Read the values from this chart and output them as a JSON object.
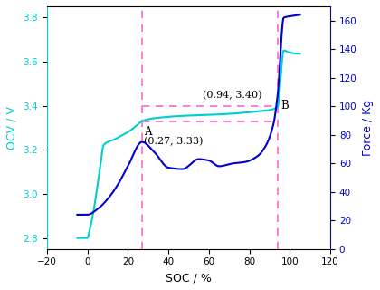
{
  "xlabel": "SOC / %",
  "ylabel_left": "OCV / V",
  "ylabel_right": "Force / Kg",
  "xlim": [
    -20,
    120
  ],
  "ylim_left": [
    2.75,
    3.85
  ],
  "ylim_right": [
    0,
    170
  ],
  "xticks": [
    -20,
    0,
    20,
    40,
    60,
    80,
    100,
    120
  ],
  "yticks_left": [
    2.8,
    3.0,
    3.2,
    3.4,
    3.6,
    3.8
  ],
  "yticks_right": [
    0,
    20,
    40,
    60,
    80,
    100,
    120,
    140,
    160
  ],
  "ocv_color": "#00CDCD",
  "force_color": "#0000CC",
  "dashed_color": "#FF66CC",
  "point_A_soc": 27,
  "point_A_ocv": 3.33,
  "point_B_soc": 94,
  "point_B_ocv": 3.4,
  "label_A_line1": "A",
  "label_A_line2": "(0.27, 3.33)",
  "label_B_annot": "(0.94, 3.40)",
  "label_B_marker": "B"
}
